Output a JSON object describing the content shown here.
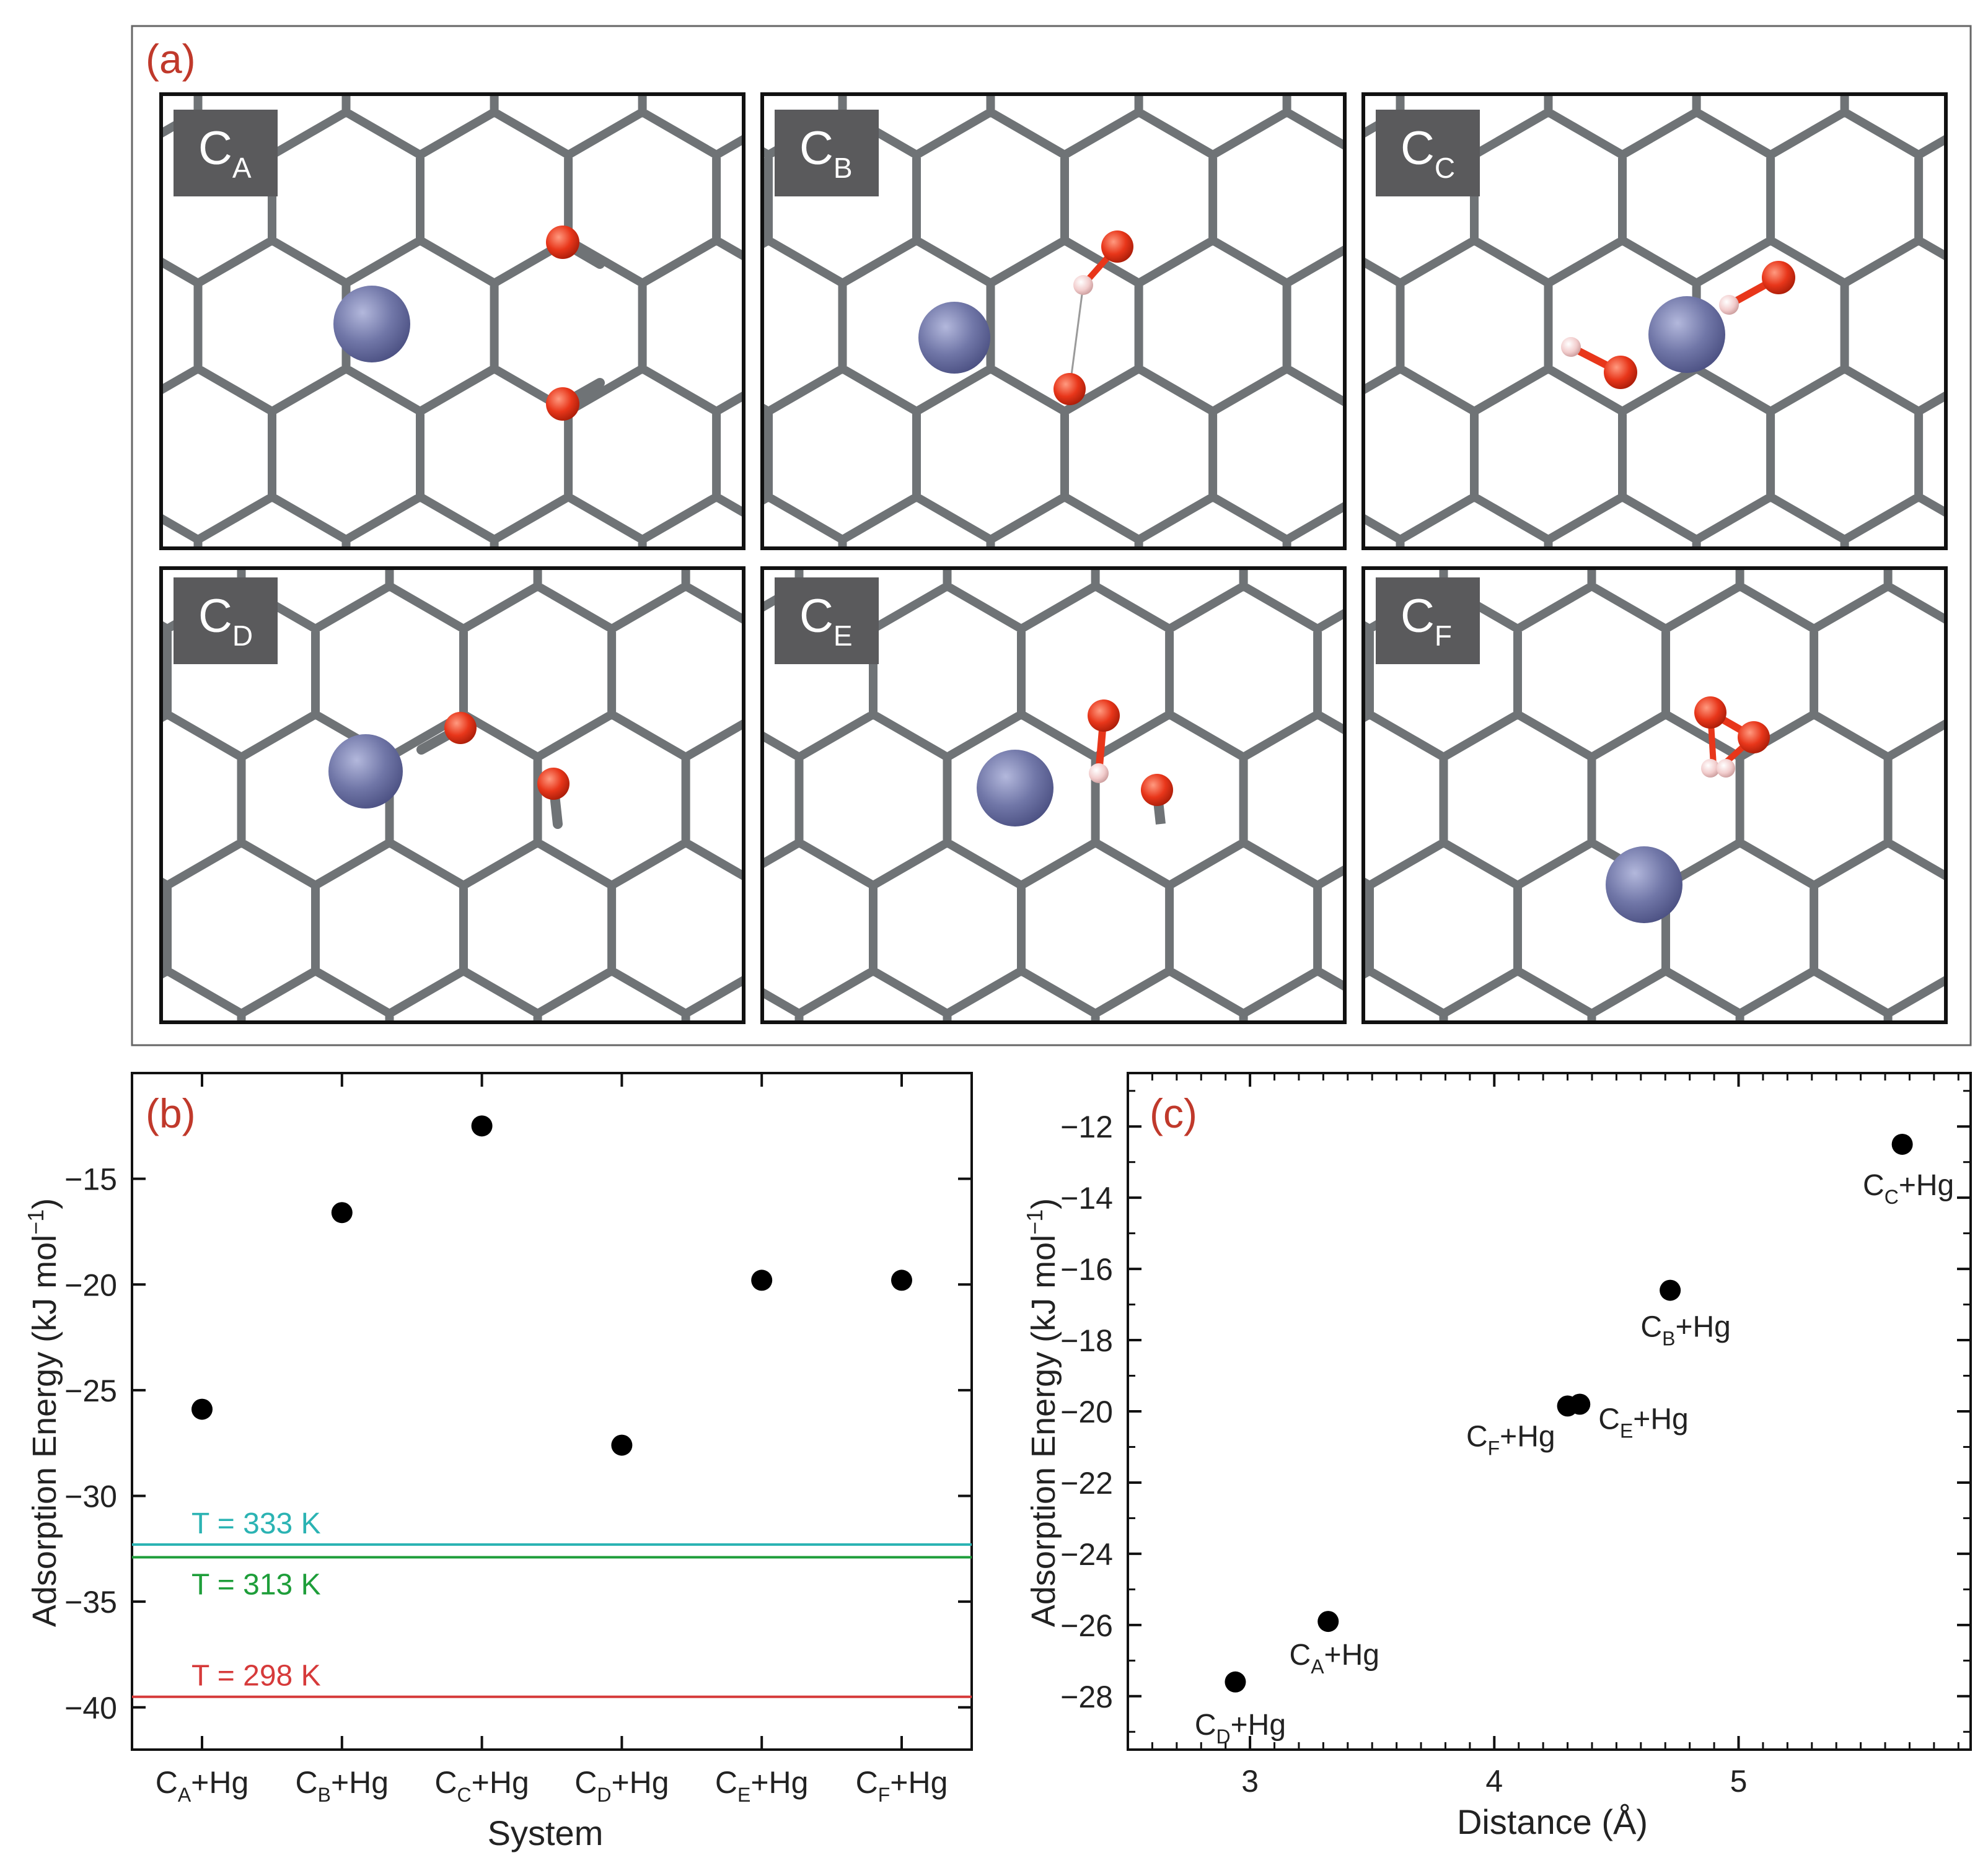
{
  "colors": {
    "frame": "#555555",
    "bond": "#6f7376",
    "hg": "#7177a8",
    "oxygen": "#e8361a",
    "hydrogen": "#f2cdcd",
    "label_bg": "#5a5a5c",
    "panel_letter": "#c0392b",
    "line_333": "#2bb3b3",
    "line_313": "#1e9e3a",
    "line_298": "#d63a3a"
  },
  "panel_a": {
    "letter": "(a)",
    "structures": [
      {
        "label": "C",
        "sub": "A"
      },
      {
        "label": "C",
        "sub": "B"
      },
      {
        "label": "C",
        "sub": "C"
      },
      {
        "label": "C",
        "sub": "D"
      },
      {
        "label": "C",
        "sub": "E"
      },
      {
        "label": "C",
        "sub": "F"
      }
    ]
  },
  "chart_data": [
    {
      "panel": "(b)",
      "type": "scatter",
      "xlabel": "System",
      "ylabel": "Adsorption Energy (kJ mol",
      "ylabel_sup": "−1",
      "ylabel_end": ")",
      "categories": [
        {
          "main": "C",
          "sub": "A",
          "rest": "+Hg"
        },
        {
          "main": "C",
          "sub": "B",
          "rest": "+Hg"
        },
        {
          "main": "C",
          "sub": "C",
          "rest": "+Hg"
        },
        {
          "main": "C",
          "sub": "D",
          "rest": "+Hg"
        },
        {
          "main": "C",
          "sub": "E",
          "rest": "+Hg"
        },
        {
          "main": "C",
          "sub": "F",
          "rest": "+Hg"
        }
      ],
      "values": [
        -25.9,
        -16.6,
        -12.5,
        -27.6,
        -19.8,
        -19.8
      ],
      "ylim": [
        -42,
        -10
      ],
      "yticks": [
        -40,
        -35,
        -30,
        -25,
        -20,
        -15
      ],
      "yticklabels": [
        "−40",
        "−35",
        "−30",
        "−25",
        "−20",
        "−15"
      ],
      "reference_lines": [
        {
          "label": "T = 333 K",
          "y": -32.3,
          "color": "#2bb3b3"
        },
        {
          "label": "T = 313 K",
          "y": -32.9,
          "color": "#1e9e3a"
        },
        {
          "label": "T = 298 K",
          "y": -39.5,
          "color": "#d63a3a"
        }
      ]
    },
    {
      "panel": "(c)",
      "type": "scatter",
      "xlabel": "Distance (Å)",
      "ylabel": "Adsorption Energy (kJ mol",
      "ylabel_sup": "−1",
      "ylabel_end": ")",
      "xlim": [
        2.5,
        5.95
      ],
      "ylim": [
        -29.5,
        -10.5
      ],
      "xticks": [
        3,
        4,
        5
      ],
      "xticklabels": [
        "3",
        "4",
        "5"
      ],
      "yticks": [
        -28,
        -26,
        -24,
        -22,
        -20,
        -18,
        -16,
        -14,
        -12
      ],
      "yticklabels": [
        "−28",
        "−26",
        "−24",
        "−22",
        "−20",
        "−18",
        "−16",
        "−14",
        "−12"
      ],
      "points": [
        {
          "x": 3.32,
          "y": -25.9,
          "main": "C",
          "sub": "A",
          "rest": "+Hg"
        },
        {
          "x": 4.72,
          "y": -16.6,
          "main": "C",
          "sub": "B",
          "rest": "+Hg"
        },
        {
          "x": 5.67,
          "y": -12.5,
          "main": "C",
          "sub": "C",
          "rest": "+Hg"
        },
        {
          "x": 2.94,
          "y": -27.6,
          "main": "C",
          "sub": "D",
          "rest": "+Hg"
        },
        {
          "x": 4.35,
          "y": -19.8,
          "main": "C",
          "sub": "E",
          "rest": "+Hg"
        },
        {
          "x": 4.3,
          "y": -19.85,
          "main": "C",
          "sub": "F",
          "rest": "+Hg"
        }
      ]
    }
  ]
}
